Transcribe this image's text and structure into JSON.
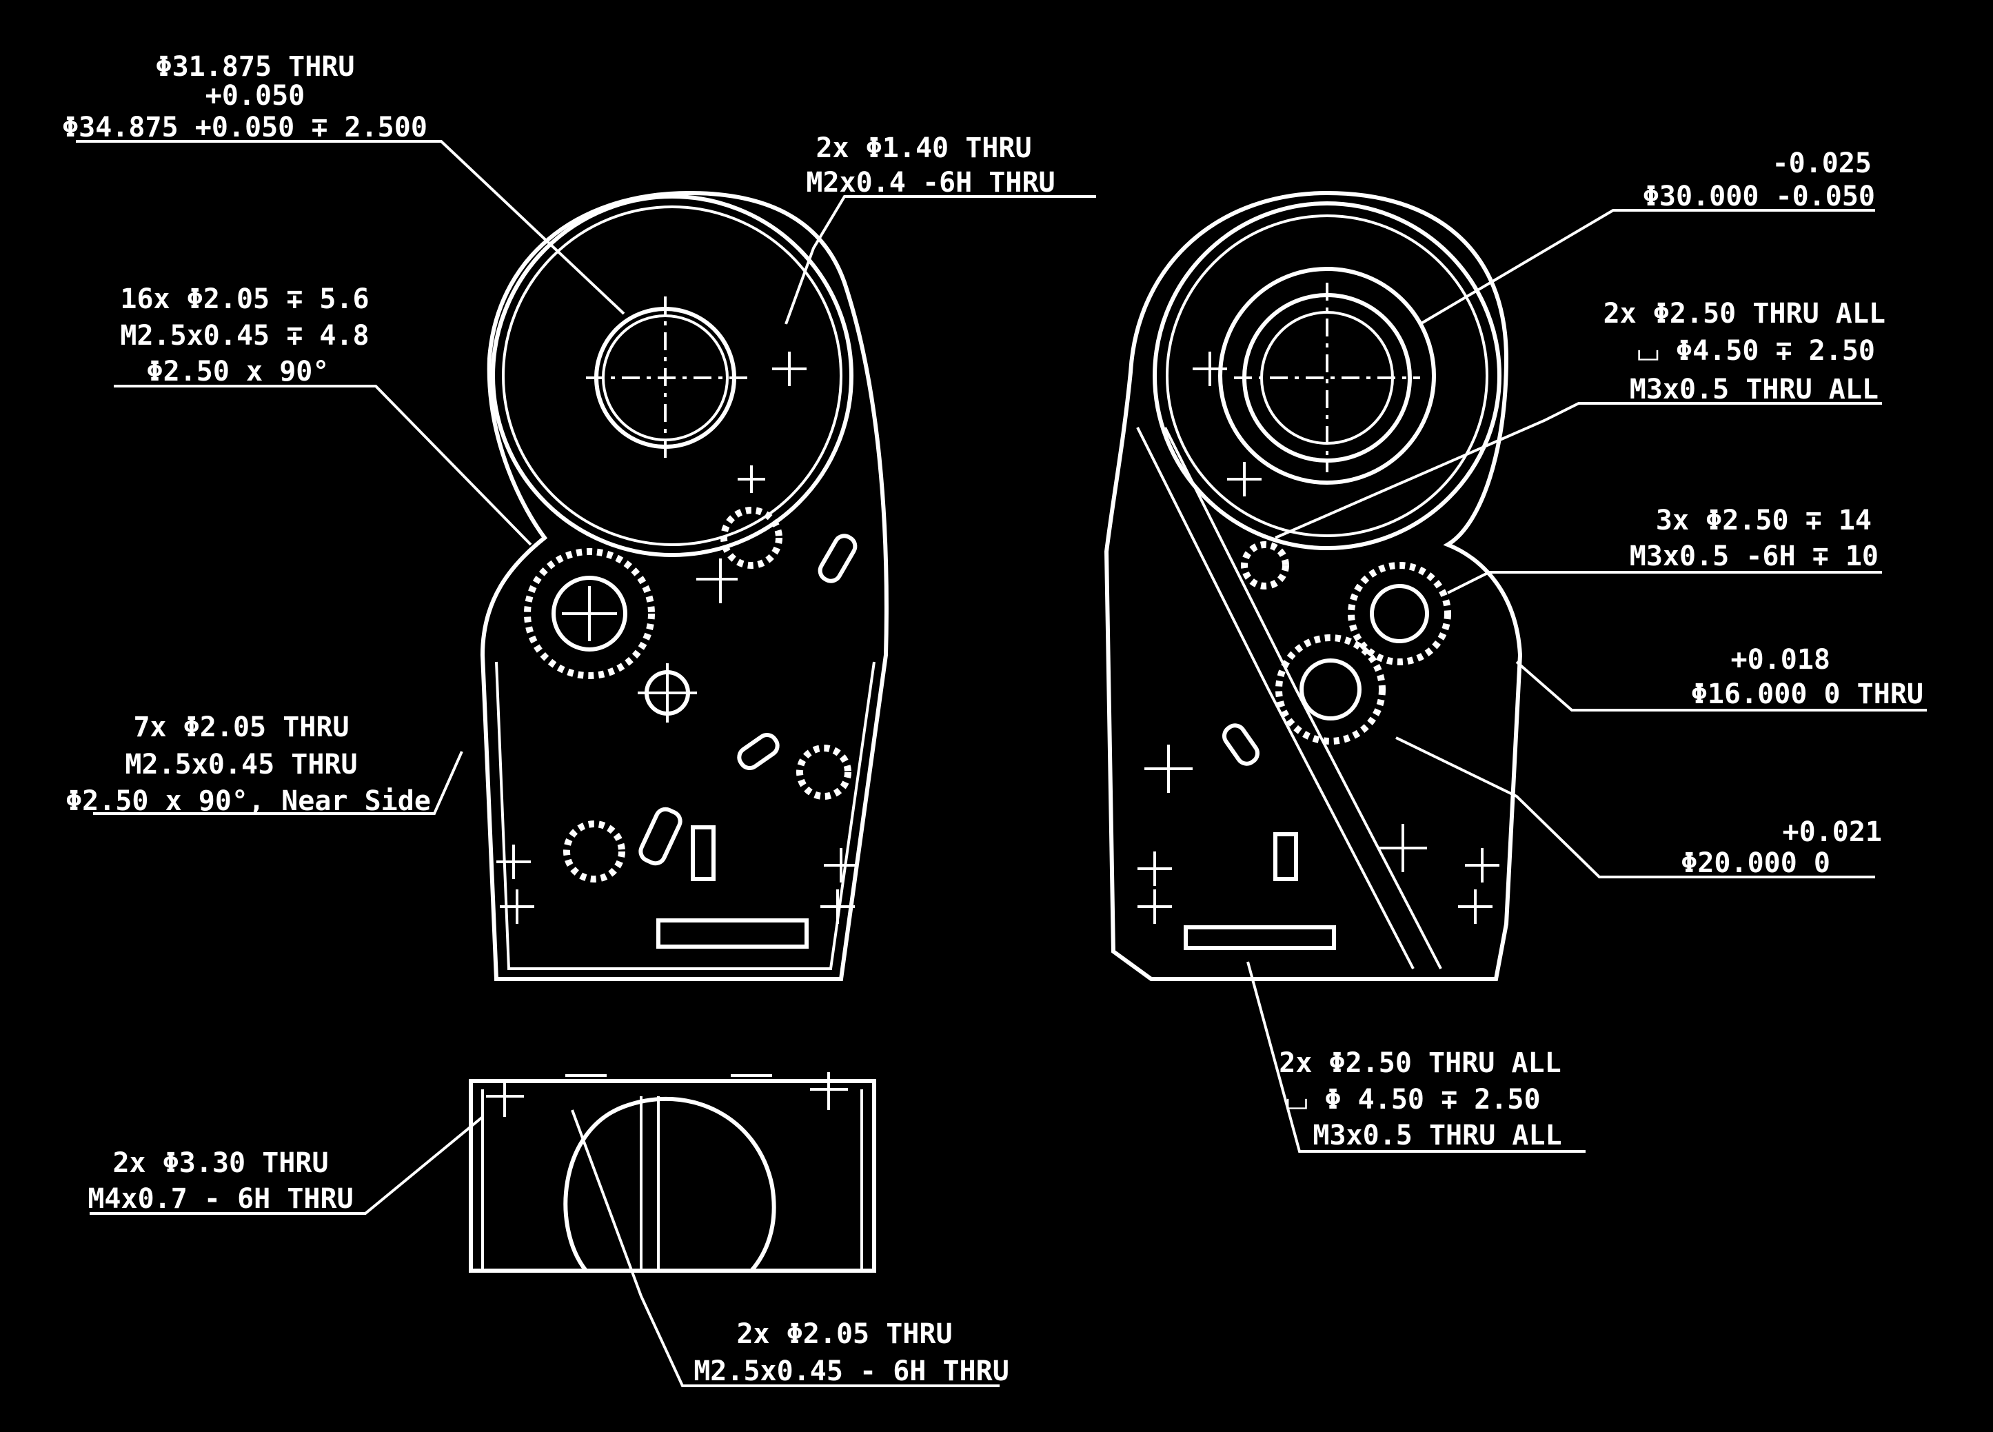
{
  "palette": {
    "background": "#000000",
    "line": "#ffffff"
  },
  "callouts": {
    "c1": {
      "line1": "Φ31.875 THRU",
      "line2": "+0.050",
      "line3": "Φ34.875 +0.050 ∓ 2.500"
    },
    "c2": {
      "line1": "2x Φ1.40 THRU",
      "line2": "M2x0.4 -6H THRU"
    },
    "c3": {
      "line1": "16x Φ2.05 ∓ 5.6",
      "line2": "M2.5x0.45 ∓ 4.8",
      "line3": "Φ2.50 x 90°"
    },
    "c4": {
      "line1": "7x Φ2.05 THRU",
      "line2": "M2.5x0.45 THRU",
      "line3": "Φ2.50 x 90°, Near Side"
    },
    "c5": {
      "line1": "-0.025",
      "line2": "Φ30.000 -0.050"
    },
    "c6": {
      "line1": "2x Φ2.50 THRU ALL",
      "line2": "⌴ Φ4.50 ∓ 2.50",
      "line3": "M3x0.5 THRU ALL"
    },
    "c7": {
      "line1": "3x Φ2.50 ∓ 14",
      "line2": "M3x0.5 -6H ∓ 10"
    },
    "c8": {
      "line1": "+0.018",
      "line2": "Φ16.000   0       THRU"
    },
    "c9": {
      "line1": "+0.021",
      "line2": "Φ20.000   0"
    },
    "c10": {
      "line1": "2x Φ2.50 THRU ALL",
      "line2": "⌴ Φ 4.50 ∓ 2.50",
      "line3": "M3x0.5 THRU ALL"
    },
    "c11": {
      "line1": "2x Φ3.30 THRU",
      "line2": "M4x0.7 - 6H THRU"
    },
    "c12": {
      "line1": "2x Φ2.05 THRU",
      "line2": "M2.5x0.45 - 6H THRU"
    }
  }
}
